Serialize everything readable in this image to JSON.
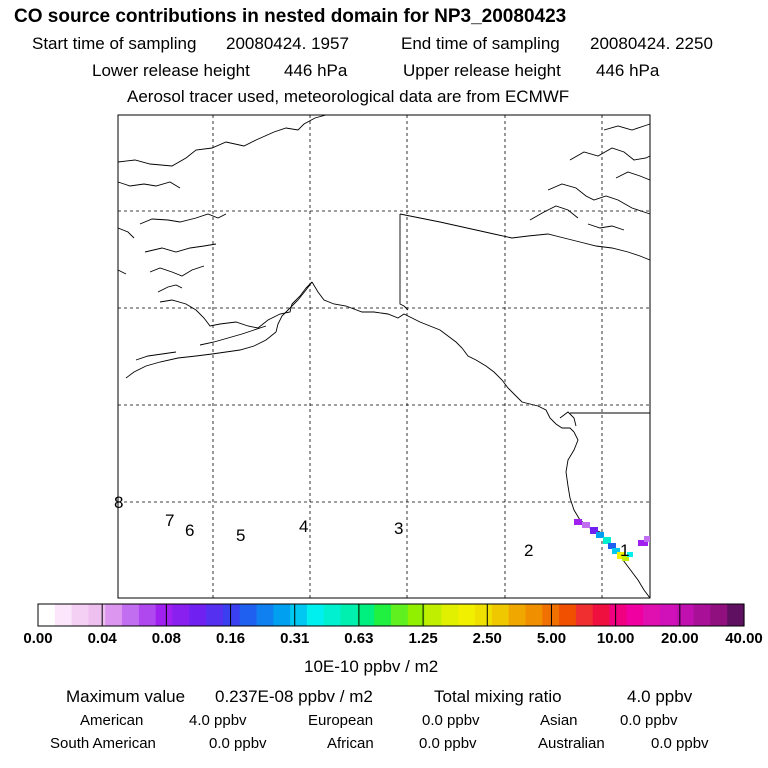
{
  "header": {
    "title": "CO  source contributions in nested domain for NP3_20080423",
    "line1_start_label": "Start time of sampling",
    "line1_start_value": "20080424.  1957",
    "line1_end_label": "End time of sampling",
    "line1_end_value": "20080424.  2250",
    "line2_lower_label": "Lower release height",
    "line2_lower_value": "446 hPa",
    "line2_upper_label": "Upper release height",
    "line2_upper_value": "446 hPa",
    "line3": "Aerosol tracer used, meteorological data are from ECMWF"
  },
  "map": {
    "trajectory_markers": [
      "1",
      "2",
      "3",
      "4",
      "5",
      "6",
      "7",
      "8"
    ]
  },
  "colorbar": {
    "tick_labels": [
      "0.00",
      "0.04",
      "0.08",
      "0.16",
      "0.31",
      "0.63",
      "1.25",
      "2.50",
      "5.00",
      "10.00",
      "20.00",
      "40.00"
    ],
    "unit_label": "10E-10 ppbv / m2",
    "colors": [
      "#ffffff",
      "#fbe6fb",
      "#f5d0f5",
      "#eec0ef",
      "#dc96f0",
      "#c26ef0",
      "#b048f0",
      "#a020f0",
      "#8a20ef",
      "#7020f0",
      "#5630f0",
      "#3a40f0",
      "#2060f0",
      "#1080f0",
      "#00a0f0",
      "#00c8f0",
      "#00f0f0",
      "#00f0d0",
      "#00f0b0",
      "#00f080",
      "#20f040",
      "#60f020",
      "#90f000",
      "#c0f000",
      "#e0f000",
      "#f0f000",
      "#f0e000",
      "#f0c800",
      "#f0a800",
      "#f09000",
      "#f07000",
      "#f05000",
      "#f03030",
      "#f01040",
      "#f00080",
      "#f000a0",
      "#e010b0",
      "#d010b8",
      "#c010b0",
      "#a81098",
      "#901080",
      "#601060"
    ]
  },
  "summary": {
    "max_label": "Maximum value",
    "max_value": "0.237E-08 ppbv / m2",
    "total_label": "Total mixing ratio",
    "total_value": "4.0 ppbv",
    "regions": [
      {
        "name": "American",
        "value": "4.0 ppbv"
      },
      {
        "name": "European",
        "value": "0.0 ppbv"
      },
      {
        "name": "Asian",
        "value": "0.0 ppbv"
      },
      {
        "name": "South American",
        "value": "0.0 ppbv"
      },
      {
        "name": "African",
        "value": "0.0 ppbv"
      },
      {
        "name": "Australian",
        "value": "0.0 ppbv"
      }
    ]
  }
}
